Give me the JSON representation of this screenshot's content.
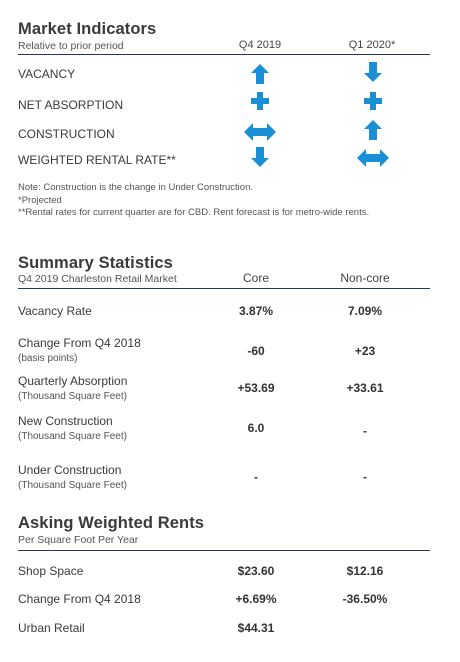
{
  "market": {
    "title": "Market Indicators",
    "subtitle": "Relative to prior period",
    "col1": "Q4 2019",
    "col2": "Q1 2020*",
    "rows": [
      {
        "label": "VACANCY",
        "q4": "up",
        "q1": "down"
      },
      {
        "label": "NET ABSORPTION",
        "q4": "plus",
        "q1": "plus"
      },
      {
        "label": "CONSTRUCTION",
        "q4": "leftright",
        "q1": "up"
      },
      {
        "label": "WEIGHTED RENTAL RATE**",
        "q4": "down",
        "q1": "leftright"
      }
    ],
    "notes": [
      "Note: Construction is the change in Under Construction.",
      "*Projected",
      "**Rental rates for current quarter are for CBD. Rent forecast is for metro-wide rents."
    ]
  },
  "summary": {
    "title": "Summary Statistics",
    "subtitle": "Q4 2019 Charleston Retail Market",
    "col1": "Core",
    "col2": "Non-core",
    "rows": [
      {
        "label": "Vacancy Rate",
        "sublabel": "",
        "core": "3.87%",
        "noncore": "7.09%"
      },
      {
        "label": "Change From Q4 2018",
        "sublabel": "(basis points)",
        "core": "-60",
        "noncore": "+23"
      },
      {
        "label": "Quarterly Absorption",
        "sublabel": "(Thousand Square Feet)",
        "core": "+53.69",
        "noncore": "+33.61"
      },
      {
        "label": "New Construction",
        "sublabel": "(Thousand Square Feet)",
        "core": "6.0",
        "noncore": "-"
      },
      {
        "label": "Under Construction",
        "sublabel": "(Thousand Square Feet)",
        "core": "-",
        "noncore": "-"
      }
    ]
  },
  "rents": {
    "title": "Asking Weighted Rents",
    "subtitle": "Per Square Foot Per Year",
    "rows": [
      {
        "label": "Shop Space",
        "core": "$23.60",
        "noncore": "$12.16"
      },
      {
        "label": "Change From Q4 2018",
        "core": "+6.69%",
        "noncore": "-36.50%"
      },
      {
        "label": "Urban Retail",
        "core": "$44.31",
        "noncore": ""
      }
    ]
  },
  "colors": {
    "accent": "#1a8fd6",
    "rule": "#1f3a5f"
  }
}
